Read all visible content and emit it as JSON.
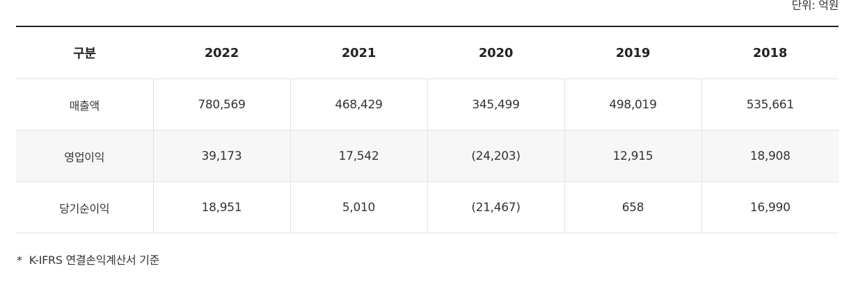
{
  "unit_label": "단위: 억원",
  "table": {
    "headers": [
      "구분",
      "2022",
      "2021",
      "2020",
      "2019",
      "2018"
    ],
    "rows": [
      {
        "label": "매출액",
        "values": [
          "780,569",
          "468,429",
          "345,499",
          "498,019",
          "535,661"
        ]
      },
      {
        "label": "영업이익",
        "values": [
          "39,173",
          "17,542",
          "(24,203)",
          "12,915",
          "18,908"
        ]
      },
      {
        "label": "당기순이익",
        "values": [
          "18,951",
          "5,010",
          "(21,467)",
          "658",
          "16,990"
        ]
      }
    ]
  },
  "footnote": {
    "marker": "*",
    "text": "K-IFRS 연결손익계산서 기준"
  }
}
